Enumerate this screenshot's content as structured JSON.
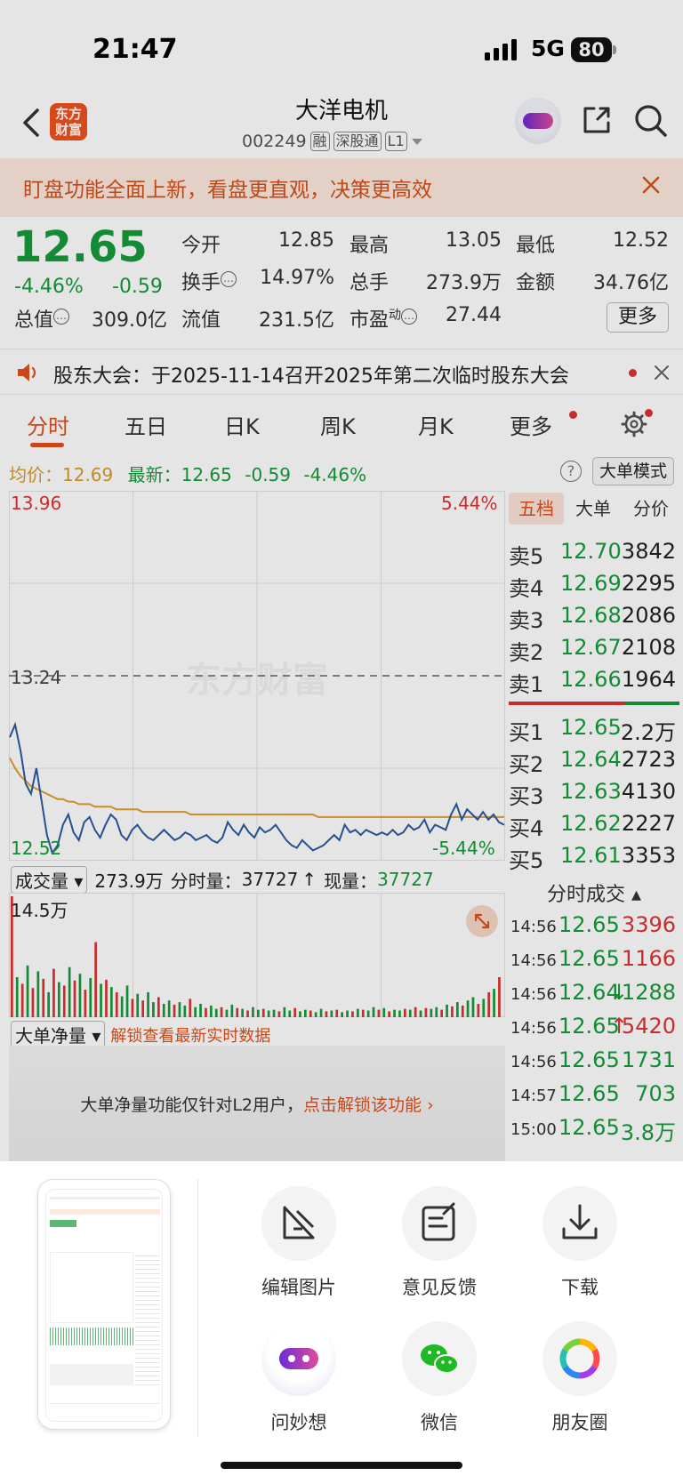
{
  "status_bar": {
    "time": "21:47",
    "network": "5G",
    "battery": "80"
  },
  "header": {
    "logo_line1": "东方",
    "logo_line2": "财富",
    "stock_name": "大洋电机",
    "stock_code": "002249",
    "tags": [
      "融",
      "深股通",
      "L1"
    ]
  },
  "banner": {
    "text": "盯盘功能全面上新，看盘更直观，决策更高效"
  },
  "quote": {
    "price": "12.65",
    "change_pct": "-4.46%",
    "change": "-0.59",
    "open_label": "今开",
    "open": "12.85",
    "high_label": "最高",
    "high": "13.05",
    "low_label": "最低",
    "low": "12.52",
    "turnover_label": "换手",
    "turnover": "14.97%",
    "volume_label": "总手",
    "volume": "273.9万",
    "amount_label": "金额",
    "amount": "34.76亿",
    "mktcap_label": "总值",
    "mktcap": "309.0亿",
    "float_label": "流值",
    "float": "231.5亿",
    "pe_label": "市盈",
    "pe_sup": "动",
    "pe": "27.44",
    "more_label": "更多"
  },
  "notice": {
    "text": "股东大会：于2025-11-14召开2025年第二次临时股东大会"
  },
  "tabs": [
    "分时",
    "五日",
    "日K",
    "周K",
    "月K",
    "更多"
  ],
  "info_line": {
    "avg_label": "均价：",
    "avg": "12.69",
    "latest_label": "最新：",
    "latest": "12.65",
    "change": "-0.59",
    "change_pct": "-4.46%",
    "big_order_mode": "大单模式"
  },
  "chart_data": {
    "type": "line",
    "title": "",
    "y_max_label": "13.96",
    "y_max_pct": "5.44%",
    "y_mid_label": "13.24",
    "y_min_label": "12.52",
    "y_min_pct": "-5.44%",
    "ylim": [
      12.52,
      13.96
    ],
    "watermark": "东方财富",
    "series": [
      {
        "name": "",
        "color": "#2b5aa0",
        "values": [
          13.0,
          13.05,
          12.95,
          12.82,
          12.78,
          12.88,
          12.75,
          12.62,
          12.55,
          12.58,
          12.66,
          12.7,
          12.63,
          12.6,
          12.67,
          12.69,
          12.64,
          12.61,
          12.66,
          12.7,
          12.68,
          12.62,
          12.6,
          12.64,
          12.66,
          12.63,
          12.61,
          12.6,
          12.62,
          12.64,
          12.62,
          12.6,
          12.61,
          12.63,
          12.62,
          12.6,
          12.61,
          12.62,
          12.6,
          12.59,
          12.61,
          12.67,
          12.64,
          12.62,
          12.66,
          12.63,
          12.61,
          12.65,
          12.63,
          12.64,
          12.66,
          12.63,
          12.6,
          12.58,
          12.57,
          12.6,
          12.58,
          12.56,
          12.57,
          12.58,
          12.6,
          12.62,
          12.6,
          12.66,
          12.63,
          12.64,
          12.62,
          12.64,
          12.63,
          12.62,
          12.63,
          12.62,
          12.64,
          12.62,
          12.63,
          12.66,
          12.64,
          12.65,
          12.68,
          12.63,
          12.66,
          12.65,
          12.64,
          12.7,
          12.74,
          12.68,
          12.72,
          12.7,
          12.68,
          12.71,
          12.68,
          12.7,
          12.67,
          12.66
        ]
      },
      {
        "name": "",
        "color": "#e0a02a",
        "values": [
          12.92,
          12.88,
          12.85,
          12.83,
          12.81,
          12.8,
          12.79,
          12.78,
          12.77,
          12.76,
          12.76,
          12.75,
          12.75,
          12.74,
          12.74,
          12.74,
          12.73,
          12.73,
          12.73,
          12.73,
          12.72,
          12.72,
          12.72,
          12.72,
          12.72,
          12.71,
          12.71,
          12.71,
          12.71,
          12.71,
          12.71,
          12.71,
          12.71,
          12.71,
          12.7,
          12.7,
          12.7,
          12.7,
          12.7,
          12.7,
          12.7,
          12.7,
          12.7,
          12.7,
          12.7,
          12.7,
          12.7,
          12.7,
          12.7,
          12.7,
          12.7,
          12.7,
          12.7,
          12.7,
          12.7,
          12.7,
          12.7,
          12.7,
          12.69,
          12.69,
          12.69,
          12.69,
          12.69,
          12.69,
          12.69,
          12.69,
          12.69,
          12.69,
          12.69,
          12.69,
          12.69,
          12.69,
          12.69,
          12.69,
          12.69,
          12.69,
          12.69,
          12.69,
          12.69,
          12.69,
          12.69,
          12.69,
          12.69,
          12.69,
          12.69,
          12.69,
          12.69,
          12.69,
          12.69,
          12.69,
          12.69,
          12.69,
          12.69,
          12.69
        ]
      }
    ],
    "volume": {
      "label": "成交量",
      "total": "273.9万",
      "period_label": "分时量：",
      "period": "37727",
      "current_label": "现量：",
      "current": "37727",
      "max_label": "14.5万",
      "ylim": [
        0,
        145000
      ],
      "values": [
        145000,
        48000,
        40000,
        62000,
        35000,
        55000,
        46000,
        30000,
        58000,
        42000,
        38000,
        60000,
        44000,
        52000,
        33000,
        47000,
        90000,
        40000,
        45000,
        36000,
        30000,
        25000,
        38000,
        22000,
        28000,
        20000,
        30000,
        18000,
        24000,
        16000,
        20000,
        15000,
        18000,
        14000,
        22000,
        12000,
        16000,
        11000,
        14000,
        10000,
        12000,
        9000,
        15000,
        11000,
        10000,
        8000,
        12000,
        9000,
        10000,
        8000,
        9000,
        7000,
        12000,
        8000,
        11000,
        7000,
        9000,
        8000,
        6000,
        10000,
        7000,
        8000,
        9000,
        6000,
        8000,
        7000,
        10000,
        9000,
        8000,
        12000,
        9000,
        11000,
        7000,
        9000,
        8000,
        10000,
        9000,
        12000,
        8000,
        11000,
        10000,
        12000,
        9000,
        15000,
        13000,
        18000,
        14000,
        20000,
        24000,
        16000,
        22000,
        30000,
        34000,
        48000
      ],
      "colors": [
        "r",
        "g",
        "r",
        "g",
        "r",
        "g",
        "r",
        "g",
        "r",
        "g",
        "r",
        "g",
        "r",
        "g",
        "r",
        "g",
        "r",
        "g",
        "r",
        "g",
        "r",
        "g",
        "g",
        "r",
        "g",
        "r",
        "g",
        "g",
        "r",
        "g",
        "g",
        "r",
        "g",
        "g",
        "r",
        "g",
        "g",
        "r",
        "g",
        "g",
        "r",
        "g",
        "g",
        "r",
        "g",
        "r",
        "g",
        "g",
        "r",
        "g",
        "g",
        "r",
        "g",
        "g",
        "r",
        "g",
        "g",
        "r",
        "g",
        "g",
        "r",
        "g",
        "r",
        "g",
        "g",
        "r",
        "g",
        "r",
        "g",
        "g",
        "r",
        "g",
        "r",
        "g",
        "g",
        "r",
        "g",
        "r",
        "g",
        "r",
        "g",
        "g",
        "r",
        "g",
        "r",
        "g",
        "r",
        "g",
        "g",
        "r",
        "g",
        "r",
        "g",
        "r"
      ]
    }
  },
  "net_volume": {
    "label": "大单净量",
    "unlock_link": "解锁查看最新实时数据",
    "message": "大单净量功能仅针对L2用户，",
    "message_link": "点击解锁该功能"
  },
  "order_book": {
    "tabs": [
      "五档",
      "大单",
      "分价"
    ],
    "asks": [
      {
        "label": "卖5",
        "price": "12.70",
        "volume": "3842"
      },
      {
        "label": "卖4",
        "price": "12.69",
        "volume": "2295"
      },
      {
        "label": "卖3",
        "price": "12.68",
        "volume": "2086"
      },
      {
        "label": "卖2",
        "price": "12.67",
        "volume": "2108"
      },
      {
        "label": "卖1",
        "price": "12.66",
        "volume": "1964"
      }
    ],
    "bids": [
      {
        "label": "买1",
        "price": "12.65",
        "volume": "2.2万"
      },
      {
        "label": "买2",
        "price": "12.64",
        "volume": "2723"
      },
      {
        "label": "买3",
        "price": "12.63",
        "volume": "4130"
      },
      {
        "label": "买4",
        "price": "12.62",
        "volume": "2227"
      },
      {
        "label": "买5",
        "price": "12.61",
        "volume": "3353"
      }
    ]
  },
  "ticks": {
    "title": "分时成交",
    "rows": [
      {
        "time": "14:56",
        "price": "12.65",
        "arrow": "",
        "volume": "3396",
        "color": "#e03131"
      },
      {
        "time": "14:56",
        "price": "12.65",
        "arrow": "",
        "volume": "1166",
        "color": "#e03131"
      },
      {
        "time": "14:56",
        "price": "12.64",
        "arrow": "↓",
        "volume": "1288",
        "color": "#169b3a"
      },
      {
        "time": "14:56",
        "price": "12.65",
        "arrow": "↑",
        "volume": "5420",
        "color": "#e03131"
      },
      {
        "time": "14:56",
        "price": "12.65",
        "arrow": "",
        "volume": "1731",
        "color": "#169b3a"
      },
      {
        "time": "14:57",
        "price": "12.65",
        "arrow": "",
        "volume": "703",
        "color": "#169b3a"
      },
      {
        "time": "15:00",
        "price": "12.65",
        "arrow": "",
        "volume": "3.8万",
        "color": "#169b3a"
      }
    ]
  },
  "share_sheet": {
    "actions": [
      {
        "label": "编辑图片",
        "icon": "edit-image-icon"
      },
      {
        "label": "意见反馈",
        "icon": "feedback-icon"
      },
      {
        "label": "下载",
        "icon": "download-icon"
      },
      {
        "label": "问妙想",
        "icon": "robot-assistant-icon"
      },
      {
        "label": "微信",
        "icon": "wechat-icon"
      },
      {
        "label": "朋友圈",
        "icon": "moments-icon"
      }
    ]
  }
}
